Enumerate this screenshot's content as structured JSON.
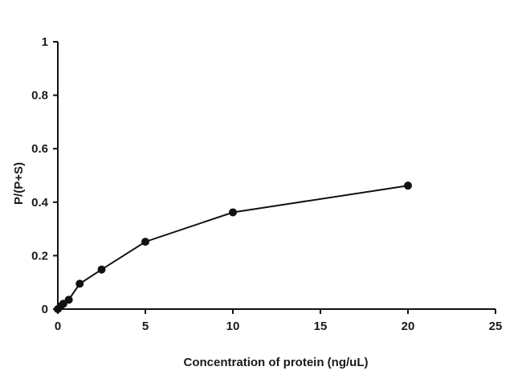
{
  "chart_data": {
    "type": "line",
    "title": "",
    "xlabel": "Concentration of protein (ng/uL)",
    "ylabel": "P/(P+S)",
    "xlim": [
      0,
      25
    ],
    "ylim": [
      0,
      1
    ],
    "x_ticks": [
      0,
      5,
      10,
      15,
      20,
      25
    ],
    "y_ticks": [
      0,
      0.2,
      0.4,
      0.6,
      0.8,
      1
    ],
    "x_tick_labels": [
      "0",
      "5",
      "10",
      "15",
      "20",
      "25"
    ],
    "y_tick_labels": [
      "0",
      "0.2",
      "0.4",
      "0.6",
      "0.8",
      "1"
    ],
    "grid": false,
    "legend": "none",
    "series": [
      {
        "x": [
          0,
          0.156,
          0.3125,
          0.625,
          1.25,
          2.5,
          5,
          10,
          20
        ],
        "y": [
          0.0,
          0.01,
          0.02,
          0.035,
          0.095,
          0.148,
          0.252,
          0.362,
          0.462
        ],
        "color": "#111111"
      }
    ]
  }
}
